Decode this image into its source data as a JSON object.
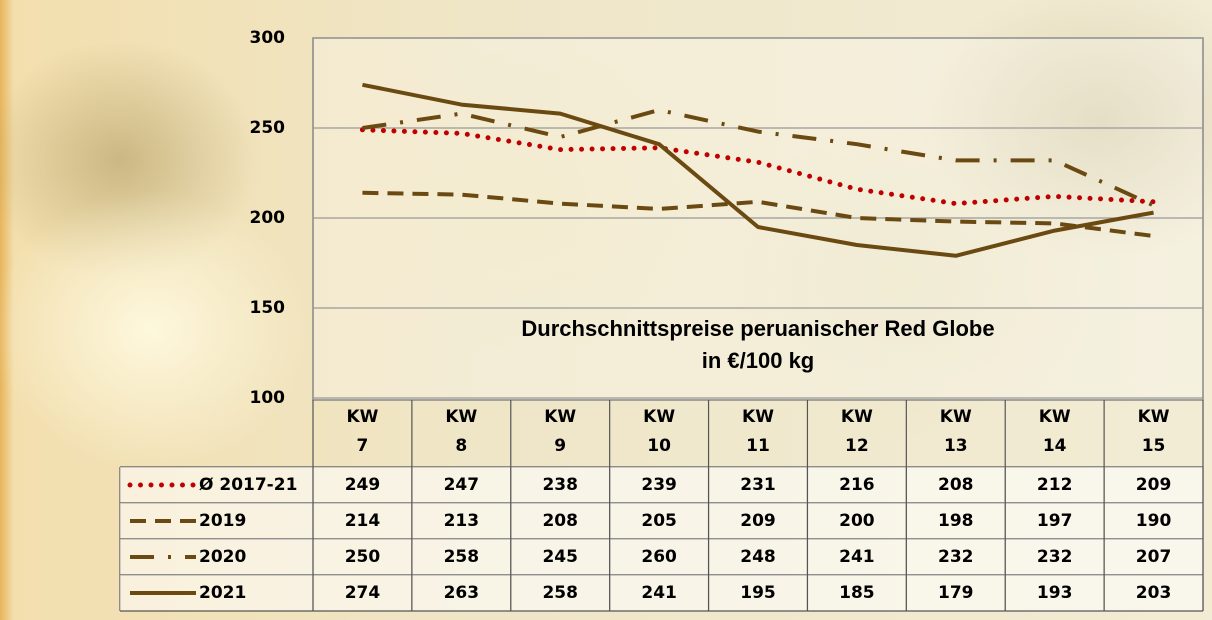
{
  "chart_data": {
    "type": "line",
    "title": [
      "Durchschnittspreise peruanischer Red Globe",
      "in €/100 kg"
    ],
    "categories": [
      "KW 7",
      "KW 8",
      "KW 9",
      "KW 10",
      "KW 11",
      "KW 12",
      "KW 13",
      "KW 14",
      "KW 15"
    ],
    "series": [
      {
        "name": "Ø 2017-21",
        "color": "#c00000",
        "style": "dotted",
        "values": [
          249,
          247,
          238,
          239,
          231,
          216,
          208,
          212,
          209
        ]
      },
      {
        "name": "2019",
        "color": "#6b4a12",
        "style": "dashed",
        "values": [
          214,
          213,
          208,
          205,
          209,
          200,
          198,
          197,
          190
        ]
      },
      {
        "name": "2020",
        "color": "#6b4a12",
        "style": "dashdot",
        "values": [
          250,
          258,
          245,
          260,
          248,
          241,
          232,
          232,
          207
        ]
      },
      {
        "name": "2021",
        "color": "#6b4a12",
        "style": "solid",
        "values": [
          274,
          263,
          258,
          241,
          195,
          185,
          179,
          193,
          203
        ]
      }
    ],
    "ylim": [
      100,
      300
    ],
    "yticks": [
      100,
      150,
      200,
      250,
      300
    ],
    "grid": true
  }
}
